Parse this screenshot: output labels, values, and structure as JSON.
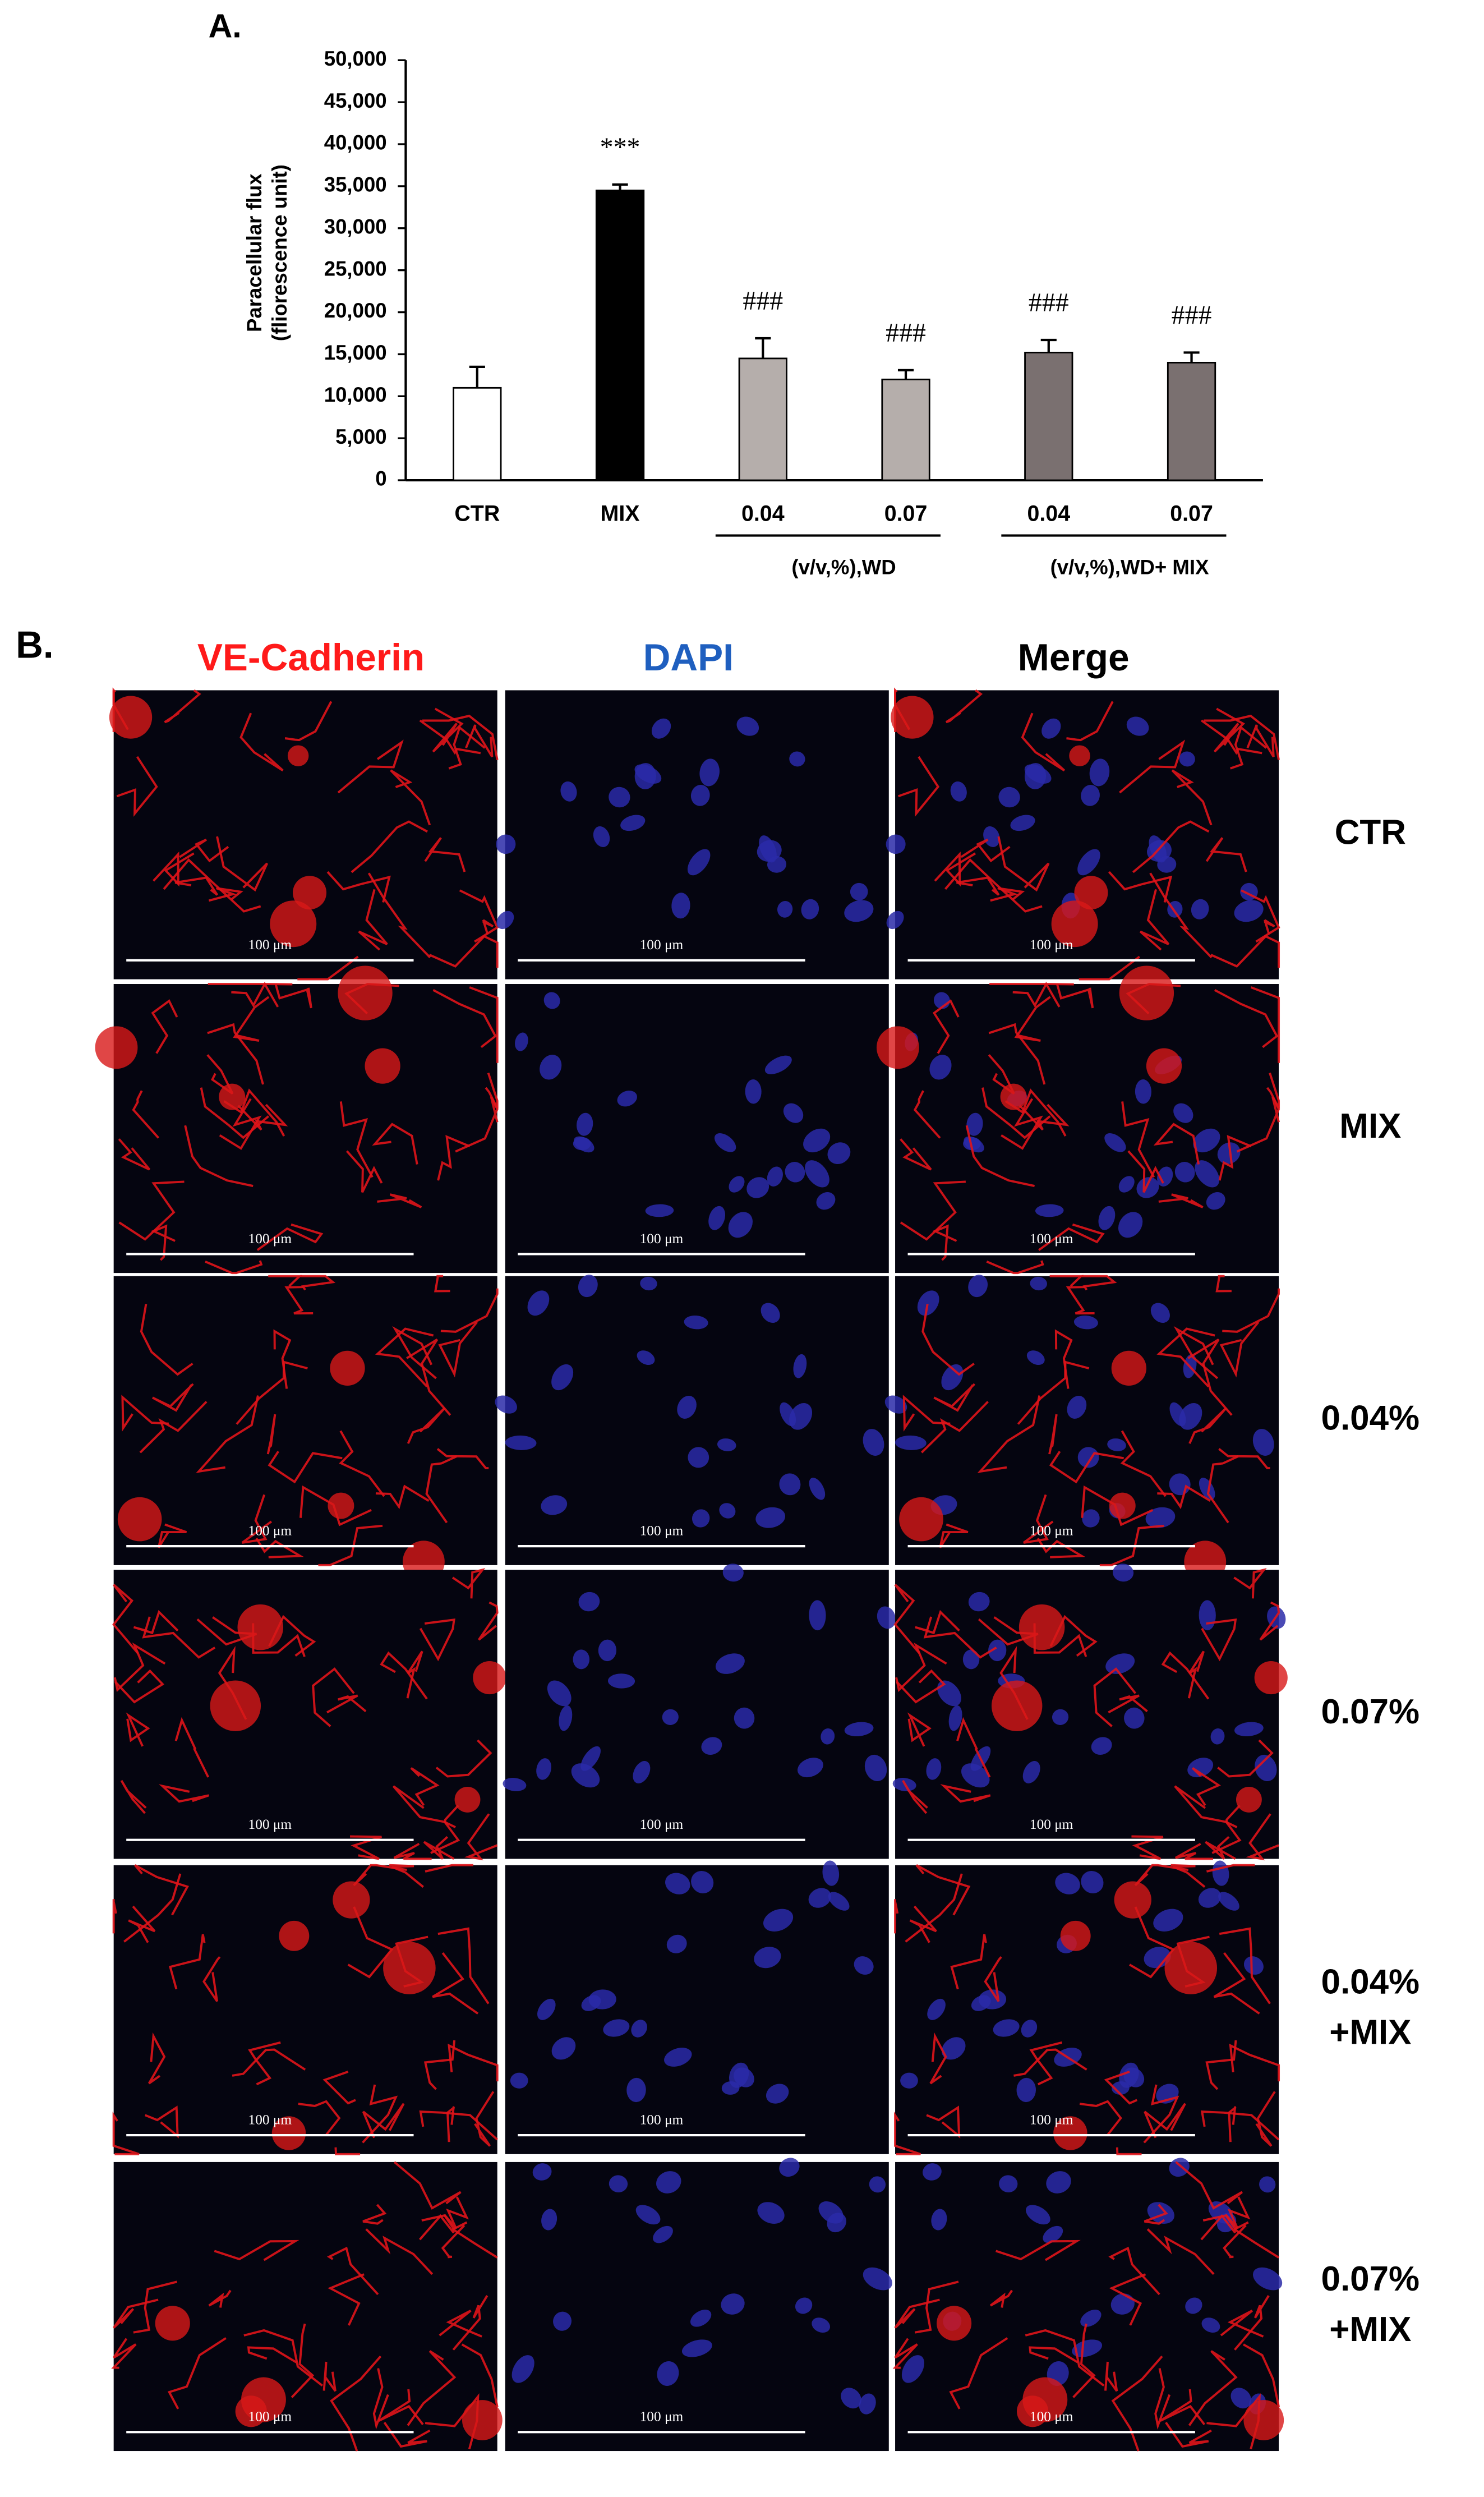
{
  "panel_a": {
    "label": "A."
  },
  "chart_data": {
    "type": "bar",
    "y_label": [
      "Paracellular flux",
      "(fliorescence unit)"
    ],
    "categories": [
      "CTR",
      "MIX",
      "0.04",
      "0.07",
      "0.04",
      "0.07"
    ],
    "values": [
      11000,
      34500,
      14500,
      12000,
      15200,
      14000
    ],
    "errors": [
      2500,
      700,
      2400,
      1100,
      1500,
      1200
    ],
    "colors": [
      "#ffffff",
      "#000000",
      "#b5aeab",
      "#b5aeab",
      "#7a7070",
      "#7a7070"
    ],
    "annotations": [
      null,
      "***",
      "###",
      "###",
      "###",
      "###"
    ],
    "groups": [
      {
        "label": "(v/v,%),WD",
        "from": 2,
        "to": 3
      },
      {
        "label": "(v/v,%),WD+ MIX",
        "from": 4,
        "to": 5
      }
    ],
    "ylim": [
      0,
      50000
    ],
    "yticks": [
      0,
      {
        "value": 5000,
        "label": "5,000"
      },
      {
        "value": 10000,
        "label": "10,000"
      },
      {
        "value": 15000,
        "label": "15,000"
      },
      {
        "value": 20000,
        "label": "20,000"
      },
      {
        "value": 25000,
        "label": "25,000"
      },
      {
        "value": 30000,
        "label": "30,000"
      },
      {
        "value": 35000,
        "label": "35,000"
      },
      {
        "value": 40000,
        "label": "40,000"
      },
      {
        "value": 45000,
        "label": "45,000"
      },
      {
        "value": 50000,
        "label": "50,000"
      }
    ],
    "grid": false
  },
  "panel_b": {
    "label": "B.",
    "columns": [
      "VE-Cadherin",
      "DAPI",
      "Merge"
    ],
    "rows": [
      [
        "CTR"
      ],
      [
        "MIX"
      ],
      [
        "0.04%"
      ],
      [
        "0.07%"
      ],
      [
        "0.04%",
        "+MIX"
      ],
      [
        "0.07%",
        "+MIX"
      ]
    ],
    "scale_bar": "100 μm"
  }
}
